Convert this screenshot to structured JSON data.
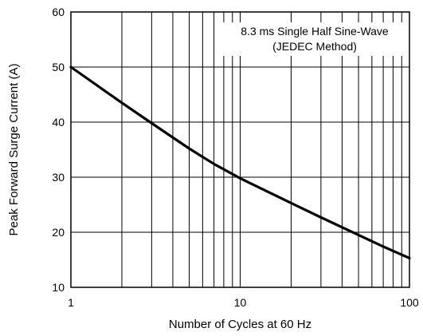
{
  "chart_data": {
    "type": "line",
    "title": "",
    "xlabel": "Number of Cycles at 60 Hz",
    "ylabel": "Peak Forward Surge Current (A)",
    "x_scale": "log",
    "xlim": [
      1,
      100
    ],
    "ylim": [
      10,
      60
    ],
    "x_ticks": [
      1,
      10,
      100
    ],
    "x_tick_labels": [
      "1",
      "10",
      "100"
    ],
    "y_ticks": [
      10,
      20,
      30,
      40,
      50,
      60
    ],
    "y_tick_labels": [
      "10",
      "20",
      "30",
      "40",
      "50",
      "60"
    ],
    "grid": true,
    "annotation": [
      "8.3 ms Single Half Sine-Wave",
      "(JEDEC Method)"
    ],
    "series": [
      {
        "x": [
          1,
          2,
          3,
          5,
          7,
          10,
          20,
          30,
          50,
          70,
          100
        ],
        "y": [
          50,
          43.5,
          39.8,
          35.2,
          32.4,
          29.8,
          25.3,
          22.7,
          19.5,
          17.4,
          15.3
        ],
        "color": "#000000"
      }
    ]
  }
}
